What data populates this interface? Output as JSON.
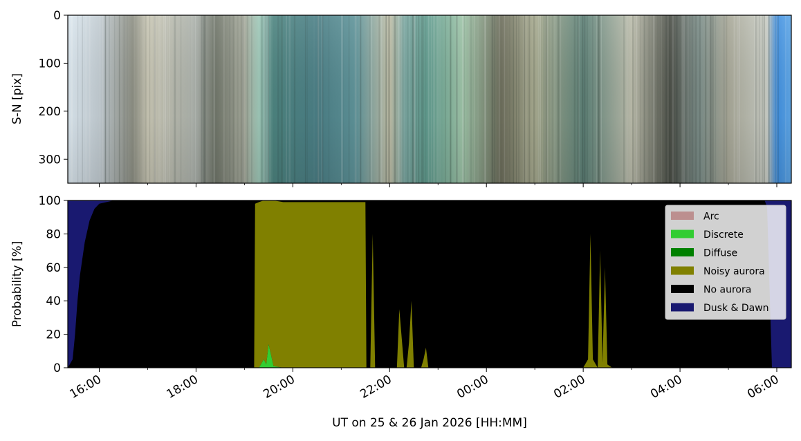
{
  "chart_data": [
    {
      "type": "heatmap",
      "ylabel": "S-N [pix]",
      "ylim": [
        350,
        0
      ],
      "yticks": [
        "0",
        "100",
        "200",
        "300"
      ],
      "ytick_values": [
        0,
        100,
        200,
        300
      ],
      "x_range_hours": [
        15.35,
        30.3
      ],
      "colors": {
        "bands": [
          {
            "t": 15.35,
            "c": "#dce8f0"
          },
          {
            "t": 16.0,
            "c": "#c2ccd2"
          },
          {
            "t": 16.7,
            "c": "#8c8e82"
          },
          {
            "t": 17.0,
            "c": "#c8c6b4"
          },
          {
            "t": 18.0,
            "c": "#aab0aa"
          },
          {
            "t": 18.4,
            "c": "#70766a"
          },
          {
            "t": 19.0,
            "c": "#a6aa9c"
          },
          {
            "t": 19.3,
            "c": "#9ec8b8"
          },
          {
            "t": 19.6,
            "c": "#4d8480"
          },
          {
            "t": 20.5,
            "c": "#4b7f86"
          },
          {
            "t": 21.3,
            "c": "#5f949a"
          },
          {
            "t": 22.0,
            "c": "#c0bfa8"
          },
          {
            "t": 22.3,
            "c": "#7aa6a0"
          },
          {
            "t": 22.8,
            "c": "#5e9a8c"
          },
          {
            "t": 23.5,
            "c": "#9ec4a8"
          },
          {
            "t": 24.3,
            "c": "#6d6e5c"
          },
          {
            "t": 25.0,
            "c": "#a8ab90"
          },
          {
            "t": 26.0,
            "c": "#5e8278"
          },
          {
            "t": 27.0,
            "c": "#bcbdac"
          },
          {
            "t": 27.8,
            "c": "#4c5048"
          },
          {
            "t": 28.4,
            "c": "#7d8f8a"
          },
          {
            "t": 29.0,
            "c": "#a8a898"
          },
          {
            "t": 29.8,
            "c": "#c8ccc4"
          },
          {
            "t": 30.0,
            "c": "#3f8fe0"
          },
          {
            "t": 30.3,
            "c": "#60a8e8"
          }
        ]
      }
    },
    {
      "type": "area",
      "xlabel": "UT on 25 & 26 Jan 2026 [HH:MM]",
      "ylabel": "Probability [%]",
      "ylim": [
        0,
        100
      ],
      "yticks": [
        "0",
        "20",
        "40",
        "60",
        "80",
        "100"
      ],
      "ytick_values": [
        0,
        20,
        40,
        60,
        80,
        100
      ],
      "xticks": [
        "16:00",
        "18:00",
        "20:00",
        "22:00",
        "00:00",
        "02:00",
        "04:00",
        "06:00"
      ],
      "xtick_hours": [
        16,
        18,
        20,
        22,
        24,
        26,
        28,
        30
      ],
      "xlim_hours": [
        15.35,
        30.3
      ],
      "legend_position": "upper right",
      "series": [
        {
          "name": "Arc",
          "color": "#bc8f8f"
        },
        {
          "name": "Discrete",
          "color": "#32cd32"
        },
        {
          "name": "Diffuse",
          "color": "#008000"
        },
        {
          "name": "Noisy aurora",
          "color": "#808000"
        },
        {
          "name": "No aurora",
          "color": "#000000"
        },
        {
          "name": "Dusk & Dawn",
          "color": "#191970"
        }
      ],
      "stack_order": [
        "Arc",
        "Discrete",
        "Diffuse",
        "Noisy aurora",
        "No aurora",
        "Dusk & Dawn"
      ],
      "x_hours": [
        15.35,
        15.45,
        15.5,
        15.55,
        15.6,
        15.7,
        15.8,
        15.9,
        16.0,
        16.3,
        18.0,
        19.0,
        19.2,
        19.22,
        19.3,
        19.4,
        19.45,
        19.5,
        19.6,
        19.8,
        20.0,
        21.0,
        21.5,
        21.52,
        21.6,
        21.65,
        21.7,
        21.8,
        22.1,
        22.15,
        22.2,
        22.3,
        22.35,
        22.4,
        22.45,
        22.5,
        22.55,
        22.65,
        22.7,
        22.75,
        22.8,
        22.85,
        22.9,
        23.0,
        25.95,
        26.0,
        26.1,
        26.15,
        26.2,
        26.3,
        26.35,
        26.4,
        26.45,
        26.5,
        26.6,
        29.75,
        29.8,
        29.9,
        30.3
      ],
      "dusk_dawn": [
        100,
        95,
        80,
        60,
        45,
        25,
        12,
        5,
        2,
        0,
        0,
        0,
        0,
        0,
        0,
        0,
        0,
        0,
        0,
        0,
        0,
        0,
        0,
        0,
        0,
        0,
        0,
        0,
        0,
        0,
        0,
        0,
        0,
        0,
        0,
        0,
        0,
        0,
        0,
        0,
        0,
        0,
        0,
        0,
        0,
        0,
        0,
        0,
        0,
        0,
        0,
        0,
        0,
        0,
        0,
        0,
        4,
        100,
        100
      ],
      "noisy_aurora": [
        0,
        0,
        0,
        0,
        0,
        0,
        0,
        0,
        0,
        0,
        0,
        0,
        0,
        98,
        99,
        97,
        99,
        98,
        99,
        99,
        99,
        99,
        99,
        0,
        0,
        80,
        0,
        0,
        0,
        0,
        35,
        0,
        0,
        15,
        40,
        0,
        0,
        0,
        5,
        12,
        0,
        0,
        0,
        0,
        0,
        0,
        5,
        80,
        5,
        0,
        70,
        3,
        60,
        2,
        0,
        0,
        0,
        0,
        0
      ],
      "discrete": [
        0,
        0,
        0,
        0,
        0,
        0,
        0,
        0,
        0,
        0,
        0,
        0,
        0,
        0,
        0,
        5,
        2,
        14,
        1,
        0,
        0,
        0,
        0,
        0,
        0,
        0,
        0,
        0,
        0,
        0,
        0,
        0,
        0,
        0,
        0,
        0,
        0,
        0,
        0,
        0,
        0,
        0,
        0,
        0,
        0,
        0,
        0,
        0,
        0,
        0,
        0,
        0,
        0,
        0,
        0,
        0,
        0,
        0,
        0
      ]
    }
  ]
}
